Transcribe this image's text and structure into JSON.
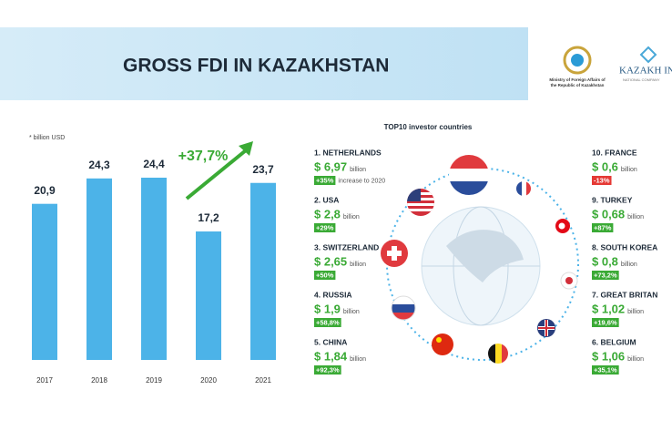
{
  "header": {
    "title": "GROSS FDI IN KAZAKHSTAN",
    "ministry": [
      "Ministry of Foreign Affairs of",
      "the Republic of Kazakhstan"
    ],
    "company": "KAZAKH INVEST",
    "company_sub": "NATIONAL COMPANY"
  },
  "chart_data": {
    "type": "bar",
    "note": "* billion USD",
    "categories": [
      "2017",
      "2018",
      "2019",
      "2020",
      "2021"
    ],
    "values": [
      20.9,
      24.3,
      24.4,
      17.2,
      23.7
    ],
    "value_labels": [
      "20,9",
      "24,3",
      "24,4",
      "17,2",
      "23,7"
    ],
    "color": "#4cb3e8",
    "annotation": "+37,7%"
  },
  "investors": {
    "title": "TOP10 investor countries",
    "left": [
      {
        "name": "1. NETHERLANDS",
        "amount": "$ 6,97",
        "unit": "billion",
        "change": "+35%",
        "note": "increase to 2020"
      },
      {
        "name": "2. USA",
        "amount": "$ 2,8",
        "unit": "billion",
        "change": "+29%"
      },
      {
        "name": "3. SWITZERLAND",
        "amount": "$ 2,65",
        "unit": "billion",
        "change": "+50%"
      },
      {
        "name": "4. RUSSIA",
        "amount": "$ 1,9",
        "unit": "billion",
        "change": "+58,8%"
      },
      {
        "name": "5. CHINA",
        "amount": "$ 1,84",
        "unit": "billion",
        "change": "+92,3%"
      }
    ],
    "right": [
      {
        "name": "10. FRANCE",
        "amount": "$ 0,6",
        "unit": "billion",
        "change": "-13%"
      },
      {
        "name": "9. TURKEY",
        "amount": "$ 0,68",
        "unit": "billion",
        "change": "+87%"
      },
      {
        "name": "8. SOUTH KOREA",
        "amount": "$ 0,8",
        "unit": "billion",
        "change": "+73,2%"
      },
      {
        "name": "7. GREAT BRITAN",
        "amount": "$ 1,02",
        "unit": "billion",
        "change": "+19,6%"
      },
      {
        "name": "6. BELGIUM",
        "amount": "$ 1,06",
        "unit": "billion",
        "change": "+35,1%"
      }
    ]
  }
}
